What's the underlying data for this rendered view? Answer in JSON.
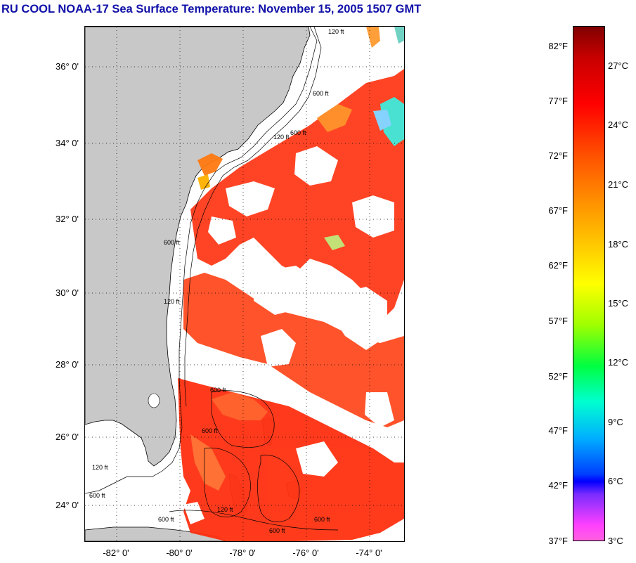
{
  "title": "RU COOL  NOAA-17  Sea Surface Temperature:  November 15, 2005 1507 GMT",
  "map": {
    "lat_labels": [
      "36° 0'",
      "34° 0'",
      "32° 0'",
      "30° 0'",
      "28° 0'",
      "26° 0'",
      "24° 0'"
    ],
    "lon_labels": [
      "-82° 0'",
      "-80° 0'",
      "-78° 0'",
      "-76° 0'",
      "-74° 0'"
    ],
    "contour_labels": [
      "120 ft",
      "600 ft",
      "120 ft",
      "600 ft",
      "600 ft",
      "600 ft",
      "120 ft",
      "600 ft",
      "600 ft",
      "600 ft",
      "120 ft",
      "600 ft",
      "120 ft",
      "600 ft"
    ],
    "colors": {
      "land": "#c8c8c8",
      "no_data": "#ffffff",
      "grid": "#000000"
    }
  },
  "colorbar": {
    "fahrenheit_labels": [
      "82°F",
      "77°F",
      "72°F",
      "67°F",
      "62°F",
      "57°F",
      "52°F",
      "47°F",
      "42°F",
      "37°F"
    ],
    "celsius_labels": [
      "27°C",
      "24°C",
      "21°C",
      "18°C",
      "15°C",
      "12°C",
      "9°C",
      "6°C",
      "3°C"
    ]
  }
}
